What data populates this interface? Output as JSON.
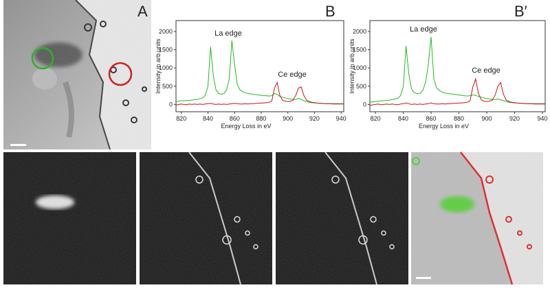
{
  "panel_a": {
    "label": "A"
  },
  "chart_data": [
    {
      "type": "line",
      "panel_label": "B",
      "ylabel": "Intensity in arb.units",
      "xlabel": "Energy Loss in eV",
      "annotations": [
        "La edge",
        "Ce edge"
      ],
      "xlim": [
        816,
        942
      ],
      "xticks": [
        820,
        840,
        860,
        880,
        900,
        920,
        940
      ],
      "ylim": [
        -200,
        2300
      ],
      "yticks": [
        0,
        500,
        1000,
        1500,
        2000
      ],
      "x": [
        816,
        818,
        820,
        822,
        824,
        826,
        828,
        830,
        832,
        834,
        836,
        838,
        840,
        842,
        844,
        846,
        848,
        850,
        852,
        854,
        856,
        858,
        860,
        862,
        864,
        866,
        868,
        870,
        872,
        874,
        876,
        878,
        880,
        882,
        884,
        886,
        888,
        890,
        892,
        894,
        896,
        898,
        900,
        902,
        904,
        906,
        908,
        910,
        912,
        914,
        916,
        918,
        920,
        922,
        924,
        926,
        928,
        930,
        932,
        934,
        936,
        938,
        940,
        942
      ],
      "series": [
        {
          "color": "#22b822",
          "values": [
            80,
            90,
            100,
            100,
            110,
            110,
            120,
            130,
            140,
            160,
            180,
            250,
            500,
            1580,
            800,
            400,
            300,
            280,
            300,
            400,
            700,
            1750,
            1100,
            550,
            400,
            350,
            320,
            300,
            290,
            280,
            270,
            260,
            250,
            240,
            240,
            230,
            240,
            300,
            280,
            220,
            200,
            180,
            160,
            150,
            140,
            130,
            170,
            140,
            100,
            80,
            60,
            50,
            40,
            40,
            30,
            30,
            20,
            20,
            20,
            20,
            20,
            20,
            20,
            20
          ]
        },
        {
          "color": "#cc1111",
          "values": [
            -20,
            0,
            10,
            0,
            -10,
            10,
            0,
            10,
            0,
            10,
            0,
            10,
            20,
            30,
            10,
            0,
            10,
            0,
            10,
            0,
            10,
            20,
            30,
            20,
            10,
            10,
            20,
            10,
            20,
            20,
            30,
            30,
            40,
            40,
            50,
            60,
            100,
            450,
            600,
            250,
            120,
            90,
            80,
            90,
            120,
            250,
            450,
            480,
            250,
            120,
            80,
            60,
            50,
            40,
            30,
            30,
            20,
            20,
            20,
            10,
            10,
            10,
            10,
            10
          ]
        }
      ]
    },
    {
      "type": "line",
      "panel_label": "B′",
      "ylabel": "Intensity in arb.units",
      "xlabel": "Energy Loss in eV",
      "annotations": [
        "La edge",
        "Ce edge"
      ],
      "xlim": [
        816,
        942
      ],
      "xticks": [
        820,
        840,
        860,
        880,
        900,
        920,
        940
      ],
      "ylim": [
        -200,
        2300
      ],
      "yticks": [
        0,
        500,
        1000,
        1500,
        2000
      ],
      "x": [
        816,
        818,
        820,
        822,
        824,
        826,
        828,
        830,
        832,
        834,
        836,
        838,
        840,
        842,
        844,
        846,
        848,
        850,
        852,
        854,
        856,
        858,
        860,
        862,
        864,
        866,
        868,
        870,
        872,
        874,
        876,
        878,
        880,
        882,
        884,
        886,
        888,
        890,
        892,
        894,
        896,
        898,
        900,
        902,
        904,
        906,
        908,
        910,
        912,
        914,
        916,
        918,
        920,
        922,
        924,
        926,
        928,
        930,
        932,
        934,
        936,
        938,
        940,
        942
      ],
      "series": [
        {
          "color": "#22b822",
          "values": [
            60,
            70,
            80,
            90,
            100,
            100,
            110,
            120,
            130,
            150,
            170,
            240,
            480,
            1600,
            820,
            420,
            320,
            290,
            300,
            380,
            600,
            1100,
            1850,
            700,
            450,
            380,
            340,
            310,
            300,
            290,
            280,
            270,
            260,
            250,
            240,
            230,
            240,
            260,
            250,
            220,
            200,
            180,
            160,
            150,
            140,
            130,
            150,
            130,
            100,
            80,
            60,
            50,
            40,
            40,
            30,
            30,
            20,
            20,
            20,
            20,
            20,
            20,
            20,
            20
          ]
        },
        {
          "color": "#cc1111",
          "values": [
            -30,
            -10,
            0,
            10,
            -10,
            0,
            10,
            0,
            10,
            0,
            -10,
            10,
            20,
            40,
            20,
            0,
            10,
            0,
            10,
            0,
            10,
            20,
            40,
            20,
            10,
            10,
            20,
            10,
            20,
            20,
            30,
            30,
            40,
            40,
            50,
            60,
            100,
            480,
            700,
            300,
            130,
            90,
            80,
            90,
            120,
            250,
            500,
            600,
            280,
            120,
            80,
            60,
            50,
            40,
            30,
            30,
            20,
            20,
            20,
            10,
            10,
            10,
            10,
            10
          ]
        }
      ]
    }
  ]
}
